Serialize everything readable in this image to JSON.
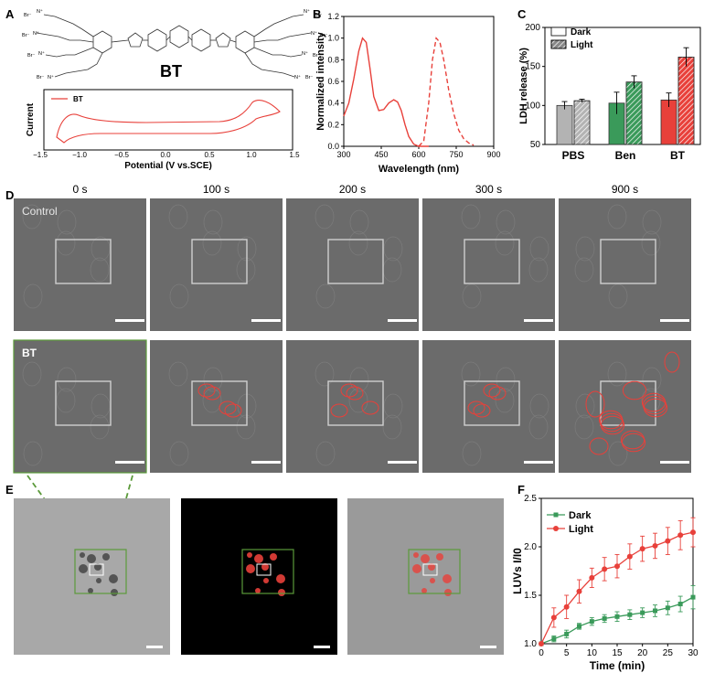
{
  "panel_labels": {
    "a": "A",
    "b": "B",
    "c": "C",
    "d": "D",
    "e": "E",
    "f": "F"
  },
  "panel_a": {
    "molecule_label": "BT",
    "cv_legend": "BT",
    "ylabel": "Current",
    "xlabel": "Potential (V vs.SCE)",
    "xticks": [
      "−1.5",
      "−1.0",
      "−0.5",
      "0.0",
      "0.5",
      "1.0",
      "1.5"
    ]
  },
  "panel_d": {
    "timepoints": [
      "0 s",
      "100 s",
      "200 s",
      "300 s",
      "900 s"
    ],
    "row1_label": "Control",
    "row2_label": "BT"
  },
  "colors": {
    "red": "#e8403a",
    "green": "#3a9a5a",
    "micrograph_gray": "#6b6b6b",
    "frame_green": "#5b9a3a"
  },
  "chart_data": [
    {
      "id": "B",
      "type": "line",
      "xlabel": "Wavelength (nm)",
      "ylabel": "Normalized intensity",
      "xlim": [
        300,
        900
      ],
      "ylim": [
        0,
        1.2
      ],
      "xticks": [
        "300",
        "450",
        "600",
        "750",
        "900"
      ],
      "yticks": [
        "0.0",
        "0.2",
        "0.4",
        "0.6",
        "0.8",
        "1.0",
        "1.2"
      ],
      "series": [
        {
          "style": "solid",
          "x": [
            300,
            320,
            340,
            360,
            375,
            390,
            405,
            420,
            440,
            460,
            480,
            500,
            515,
            530,
            545,
            560,
            580,
            600,
            620,
            640
          ],
          "y": [
            0.28,
            0.4,
            0.62,
            0.88,
            1.0,
            0.96,
            0.72,
            0.46,
            0.33,
            0.34,
            0.4,
            0.43,
            0.41,
            0.33,
            0.2,
            0.09,
            0.02,
            0.0,
            0.0,
            0.0
          ]
        },
        {
          "style": "dashed",
          "x": [
            600,
            620,
            640,
            655,
            670,
            685,
            700,
            720,
            740,
            760,
            780,
            800,
            820
          ],
          "y": [
            0.0,
            0.05,
            0.4,
            0.8,
            1.0,
            0.96,
            0.8,
            0.52,
            0.3,
            0.15,
            0.07,
            0.03,
            0.01
          ]
        }
      ]
    },
    {
      "id": "C",
      "type": "bar",
      "ylabel": "LDH release (%)",
      "ylim": [
        50,
        200
      ],
      "yticks": [
        "50",
        "100",
        "150",
        "200"
      ],
      "categories": [
        "PBS",
        "Ben",
        "BT"
      ],
      "legend": [
        "Dark",
        "Light"
      ],
      "dark": [
        100,
        103,
        107
      ],
      "light": [
        106,
        130,
        162
      ],
      "dark_err": [
        5,
        14,
        9
      ],
      "light_err": [
        2,
        8,
        12
      ]
    },
    {
      "id": "F",
      "type": "line",
      "xlabel": "Time (min)",
      "ylabel": "LUVs I/I0",
      "xlim": [
        0,
        30
      ],
      "ylim": [
        1.0,
        2.5
      ],
      "xticks": [
        "0",
        "5",
        "10",
        "15",
        "20",
        "25",
        "30"
      ],
      "yticks": [
        "1.0",
        "1.5",
        "2.0",
        "2.5"
      ],
      "x": [
        0,
        2.5,
        5,
        7.5,
        10,
        12.5,
        15,
        17.5,
        20,
        22.5,
        25,
        27.5,
        30
      ],
      "series": [
        {
          "name": "Dark",
          "y": [
            1.0,
            1.05,
            1.1,
            1.18,
            1.23,
            1.26,
            1.28,
            1.3,
            1.32,
            1.34,
            1.37,
            1.41,
            1.48
          ],
          "err": [
            0,
            0.03,
            0.04,
            0.03,
            0.04,
            0.04,
            0.05,
            0.05,
            0.05,
            0.06,
            0.07,
            0.08,
            0.12
          ]
        },
        {
          "name": "Light",
          "y": [
            1.0,
            1.27,
            1.38,
            1.54,
            1.68,
            1.77,
            1.8,
            1.9,
            1.98,
            2.01,
            2.06,
            2.12,
            2.15
          ],
          "err": [
            0,
            0.1,
            0.12,
            0.12,
            0.1,
            0.12,
            0.12,
            0.13,
            0.13,
            0.13,
            0.14,
            0.15,
            0.15
          ]
        }
      ]
    }
  ]
}
